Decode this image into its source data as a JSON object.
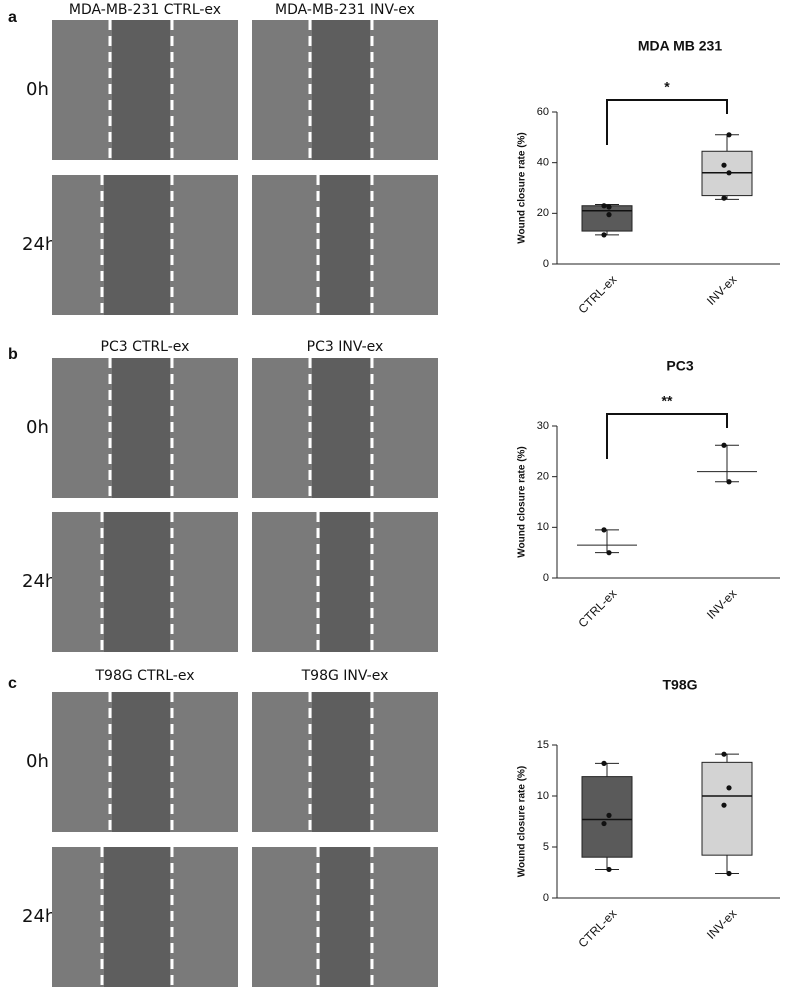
{
  "panels": [
    {
      "label": "a",
      "images": [
        "MDA-MB-231 CTRL-ex",
        "MDA-MB-231 INV-ex"
      ],
      "times": [
        "0h",
        "24h"
      ]
    },
    {
      "label": "b",
      "images": [
        "PC3 CTRL-ex",
        "PC3 INV-ex"
      ],
      "times": [
        "0h",
        "24h"
      ]
    },
    {
      "label": "c",
      "images": [
        "T98G CTRL-ex",
        "T98G INV-ex"
      ],
      "times": [
        "0h",
        "24h"
      ]
    }
  ],
  "chart_data": [
    {
      "type": "box",
      "title": "MDA MB 231",
      "y_label": "Wound closure rate (%)",
      "categories": [
        "CTRL-ex",
        "INV-ex"
      ],
      "colors": [
        "#5a5a5a",
        "#d3d3d3"
      ],
      "boxes": [
        {
          "min": 11.5,
          "q1": 13,
          "median": 21,
          "q3": 23,
          "max": 23.5
        },
        {
          "min": 25.5,
          "q1": 27,
          "median": 36,
          "q3": 44.5,
          "max": 51
        }
      ],
      "points": [
        [
          23,
          19.5,
          11.5,
          22.5
        ],
        [
          26,
          36,
          39,
          51
        ]
      ],
      "significance": "*",
      "ylim": [
        0,
        60
      ],
      "yticks": [
        0,
        20,
        40,
        60
      ]
    },
    {
      "type": "errorbar",
      "title": "PC3",
      "y_label": "Wound closure rate (%)",
      "categories": [
        "CTRL-ex",
        "INV-ex"
      ],
      "means": [
        6.5,
        21
      ],
      "lows": [
        5,
        19
      ],
      "highs": [
        9.5,
        26.2
      ],
      "points": [
        [
          9.5,
          5
        ],
        [
          26.2,
          19
        ]
      ],
      "significance": "**",
      "ylim": [
        0,
        30
      ],
      "yticks": [
        0,
        10,
        20,
        30
      ]
    },
    {
      "type": "box",
      "title": "T98G",
      "y_label": "Wound closure rate (%)",
      "categories": [
        "CTRL-ex",
        "INV-ex"
      ],
      "colors": [
        "#5a5a5a",
        "#d3d3d3"
      ],
      "boxes": [
        {
          "min": 2.8,
          "q1": 4,
          "median": 7.7,
          "q3": 11.9,
          "max": 13.2
        },
        {
          "min": 2.4,
          "q1": 4.2,
          "median": 10,
          "q3": 13.3,
          "max": 14.1
        }
      ],
      "points": [
        [
          13.2,
          8.1,
          7.3,
          2.8
        ],
        [
          14.1,
          10.8,
          9.1,
          2.4
        ]
      ],
      "ylim": [
        0,
        15
      ],
      "yticks": [
        0,
        5,
        10,
        15
      ]
    }
  ]
}
